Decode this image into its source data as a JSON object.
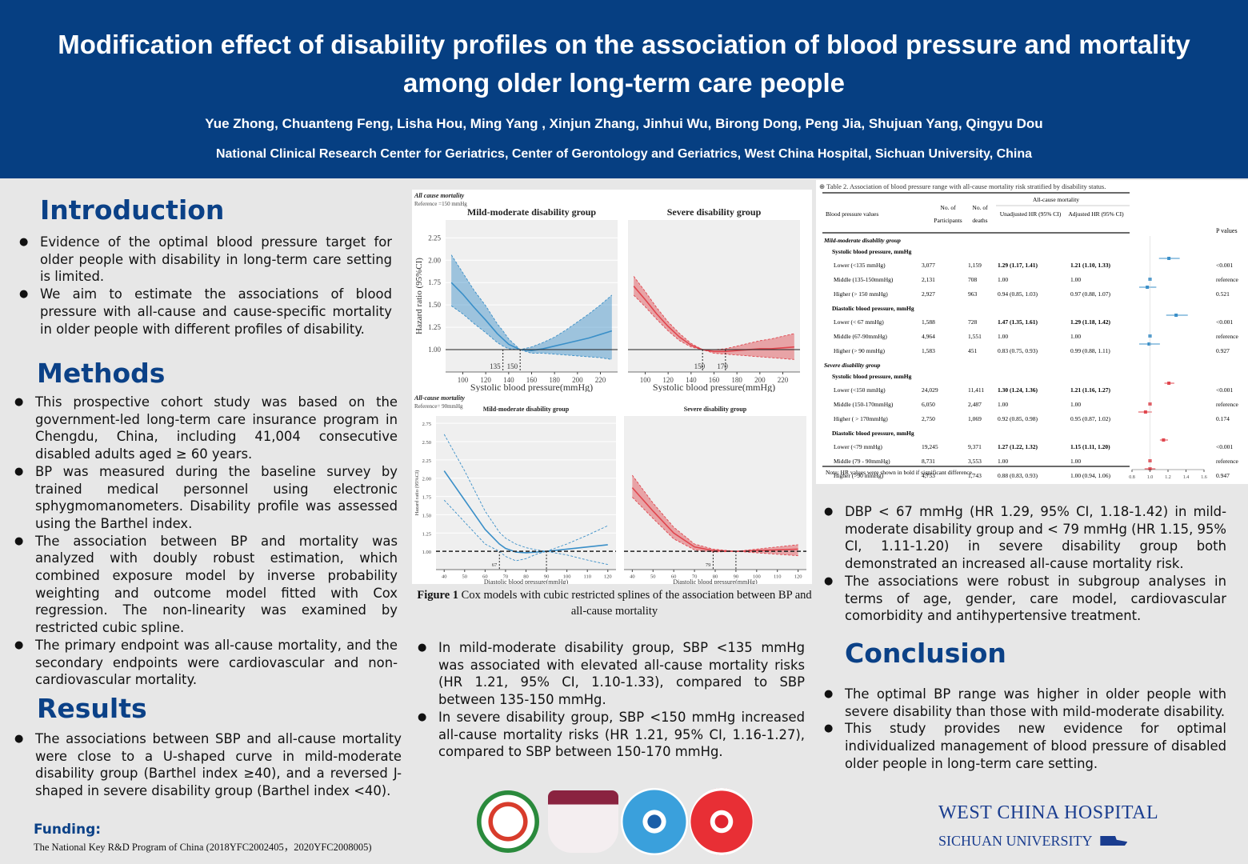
{
  "header": {
    "title": "Modification effect of disability profiles on the association of blood pressure and mortality among older long-term care people",
    "authors": "Yue Zhong, Chuanteng Feng, Lisha Hou, Ming Yang , Xinjun Zhang,  Jinhui Wu,  Birong Dong, Peng Jia, Shujuan Yang, Qingyu Dou",
    "affiliation": "National Clinical Research Center for Geriatrics, Center of Gerontology and Geriatrics, West China Hospital, Sichuan University, China"
  },
  "introduction": {
    "heading": "Introduction",
    "bullets": [
      "Evidence of the optimal blood pressure target for older people with disability in long-term care setting is limited.",
      "We aim to estimate the associations of blood pressure with all-cause and cause-specific mortality in older people with different profiles of disability."
    ]
  },
  "methods": {
    "heading": "Methods",
    "bullets": [
      "This prospective cohort study was based on the government-led long-term care insurance program in Chengdu, China, including 41,004 consecutive disabled adults aged ≥ 60 years.",
      "BP was measured during the baseline survey by trained medical personnel using electronic sphygmomanometers. Disability profile was assessed using the Barthel index.",
      "The association between BP and mortality was analyzed with doubly robust estimation, which combined exposure model by inverse probability weighting and outcome model fitted with Cox regression. The non-linearity was examined by restricted cubic spline.",
      "The primary endpoint was all-cause mortality, and the secondary endpoints were cardiovascular and non-cardiovascular mortality."
    ]
  },
  "results": {
    "heading": "Results",
    "bullets": [
      "The associations between SBP and all-cause mortality were close to a U-shaped curve in mild-moderate disability group (Barthel index ≥40), and a reversed J-shaped in severe disability group (Barthel index <40)."
    ],
    "middle_bullets": [
      "In mild-moderate disability group, SBP <135 mmHg was associated with elevated all-cause mortality risks (HR 1.21, 95% CI, 1.10-1.33), compared to SBP between 135-150 mmHg.",
      "In severe disability group, SBP <150 mmHg increased all-cause mortality risks (HR 1.21, 95% CI, 1.16-1.27), compared to SBP between 150-170 mmHg."
    ],
    "right_bullets": [
      "DBP < 67 mmHg (HR 1.29, 95% CI, 1.18-1.42) in mild-moderate disability group and < 79 mmHg (HR 1.15, 95% CI, 1.11-1.20) in severe disability group both demonstrated an increased all-cause mortality risk.",
      "The associations were robust in subgroup analyses in terms of age, gender, care model, cardiovascular comorbidity and antihypertensive treatment."
    ]
  },
  "conclusion": {
    "heading": "Conclusion",
    "bullets": [
      "The optimal BP range was higher in older people with severe disability than those with mild-moderate disability.",
      "This study provides new evidence for optimal individualized management of blood pressure of disabled older people in long-term care setting."
    ]
  },
  "funding": {
    "heading": "Funding:",
    "text": "The National Key R&D Program of China (2018YFC2002405，2020YFC2008005)"
  },
  "figure": {
    "caption_bold": "Figure 1",
    "caption_text": " Cox models with cubic restricted splines of the association between BP and all-cause mortality"
  },
  "chart_data": [
    {
      "type": "line",
      "panel_title": "All cause mortality",
      "reference_note": "Reference =150 mmHg",
      "title": "Mild-moderate disability group",
      "xlabel": "Systolic blood pressure(mmHg)",
      "ylabel": "Hazard ratio (95%CI)",
      "xticks": [
        100,
        120,
        140,
        160,
        180,
        200,
        220
      ],
      "yticks": [
        1.0,
        1.25,
        1.5,
        1.75,
        2.0,
        2.25
      ],
      "xlim": [
        85,
        235
      ],
      "ylim": [
        0.75,
        2.45
      ],
      "color": "#3a8fc8",
      "annotations": [
        "135",
        "150"
      ],
      "x": [
        90,
        100,
        110,
        120,
        130,
        135,
        140,
        150,
        160,
        170,
        180,
        190,
        200,
        210,
        220,
        230
      ],
      "hr": [
        1.75,
        1.62,
        1.47,
        1.33,
        1.18,
        1.12,
        1.06,
        1.0,
        0.99,
        1.01,
        1.04,
        1.07,
        1.1,
        1.13,
        1.17,
        1.21
      ],
      "lower": [
        1.49,
        1.4,
        1.29,
        1.19,
        1.08,
        1.04,
        1.01,
        1.0,
        0.96,
        0.96,
        0.95,
        0.94,
        0.93,
        0.92,
        0.91,
        0.89
      ],
      "upper": [
        2.06,
        1.86,
        1.66,
        1.49,
        1.29,
        1.21,
        1.12,
        1.0,
        1.03,
        1.08,
        1.14,
        1.22,
        1.31,
        1.4,
        1.5,
        1.61
      ]
    },
    {
      "type": "line",
      "title": "Severe disability group",
      "xlabel": "Systolic blood pressure(mmHg)",
      "xticks": [
        100,
        120,
        140,
        160,
        180,
        200,
        220
      ],
      "xlim": [
        85,
        235
      ],
      "ylim": [
        0.75,
        2.45
      ],
      "color": "#e0464e",
      "annotations": [
        "150",
        "170"
      ],
      "x": [
        90,
        100,
        110,
        120,
        130,
        140,
        150,
        160,
        170,
        180,
        190,
        200,
        210,
        220,
        230
      ],
      "hr": [
        1.71,
        1.56,
        1.4,
        1.26,
        1.14,
        1.05,
        1.0,
        0.98,
        0.98,
        0.99,
        1.0,
        1.01,
        1.01,
        1.02,
        1.03
      ],
      "lower": [
        1.61,
        1.48,
        1.34,
        1.21,
        1.1,
        1.03,
        1.0,
        0.96,
        0.95,
        0.94,
        0.93,
        0.92,
        0.91,
        0.9,
        0.89
      ],
      "upper": [
        1.82,
        1.65,
        1.47,
        1.31,
        1.18,
        1.07,
        1.0,
        1.0,
        1.01,
        1.04,
        1.07,
        1.1,
        1.12,
        1.15,
        1.18
      ]
    },
    {
      "type": "line",
      "panel_title": "All-cause mortality",
      "reference_note": "Reference= 90mmHg",
      "title": "Mild-moderate disability group",
      "xlabel": "Diastolic blood pressure(mmHg)",
      "ylabel": "Hazard ratio (95%CI)",
      "xticks": [
        40,
        50,
        60,
        70,
        80,
        90,
        100,
        110,
        120
      ],
      "yticks": [
        1.0,
        1.25,
        1.5,
        1.75,
        2.0,
        2.25,
        2.5,
        2.75
      ],
      "xlim": [
        36,
        124
      ],
      "ylim": [
        0.75,
        2.85
      ],
      "color": "#3a8fc8",
      "annotations": [
        "67"
      ],
      "x": [
        40,
        50,
        60,
        67,
        70,
        75,
        80,
        85,
        90,
        100,
        110,
        120
      ],
      "hr": [
        2.1,
        1.7,
        1.3,
        1.1,
        1.04,
        0.99,
        0.98,
        0.99,
        1.0,
        1.03,
        1.06,
        1.09
      ],
      "lower": [
        1.7,
        1.4,
        1.1,
        1.0,
        0.93,
        0.87,
        0.9,
        0.96,
        1.0,
        0.95,
        0.88,
        0.82
      ],
      "upper": [
        2.6,
        2.1,
        1.55,
        1.26,
        1.18,
        1.1,
        1.05,
        1.02,
        1.0,
        1.1,
        1.22,
        1.35
      ]
    },
    {
      "type": "line",
      "title": "Severe disability group",
      "xlabel": "Diastolic blood pressure(mmHg)",
      "xticks": [
        40,
        50,
        60,
        70,
        80,
        90,
        100,
        110,
        120
      ],
      "xlim": [
        36,
        124
      ],
      "ylim": [
        0.75,
        2.85
      ],
      "color": "#e0464e",
      "annotations": [
        "79"
      ],
      "x": [
        40,
        50,
        60,
        70,
        79,
        90,
        100,
        110,
        120
      ],
      "hr": [
        1.87,
        1.55,
        1.25,
        1.06,
        1.01,
        1.0,
        1.01,
        1.02,
        1.03
      ],
      "lower": [
        1.74,
        1.45,
        1.17,
        1.02,
        0.99,
        1.0,
        0.98,
        0.96,
        0.94
      ],
      "upper": [
        2.04,
        1.66,
        1.33,
        1.1,
        1.03,
        1.0,
        1.03,
        1.06,
        1.09
      ]
    }
  ],
  "table": {
    "caption": "Table 2. Association of blood pressure range with all-cause mortality risk stratified by disability status.",
    "group_header": "All-cause mortality",
    "columns": [
      "Blood pressure values",
      "No. of Participants",
      "No. of deaths",
      "Unadjusted HR (95% CI)",
      "Adjusted HR (95% CI)",
      "P values"
    ],
    "sections": [
      {
        "group": "Mild-moderate disability group",
        "subsections": [
          {
            "label": "Systolic blood pressure, mmHg",
            "rows": [
              {
                "name": "Lower (<135 mmHg)",
                "n": "3,077",
                "deaths": "1,159",
                "unadj": "1.29 (1.17, 1.41)",
                "adj": "1.21 (1.10, 1.33)",
                "p": "<0.001",
                "hr": 1.21,
                "lo": 1.1,
                "hi": 1.33
              },
              {
                "name": "Middle (135-150mmHg)",
                "n": "2,131",
                "deaths": "708",
                "unadj": "1.00",
                "adj": "1.00",
                "p": "reference",
                "hr": 1.0,
                "lo": 1.0,
                "hi": 1.0
              },
              {
                "name": "Higher (> 150 mmHg)",
                "n": "2,927",
                "deaths": "963",
                "unadj": "0.94 (0.85, 1.03)",
                "adj": "0.97 (0.88, 1.07)",
                "p": "0.521",
                "hr": 0.97,
                "lo": 0.88,
                "hi": 1.07
              }
            ]
          },
          {
            "label": "Diastolic blood pressure, mmHg",
            "rows": [
              {
                "name": "Lower (< 67 mmHg)",
                "n": "1,588",
                "deaths": "728",
                "unadj": "1.47 (1.35, 1.61)",
                "adj": "1.29 (1.18, 1.42)",
                "p": "<0.001",
                "hr": 1.29,
                "lo": 1.18,
                "hi": 1.42
              },
              {
                "name": "Middle (67-90mmHg)",
                "n": "4,964",
                "deaths": "1,551",
                "unadj": "1.00",
                "adj": "1.00",
                "p": "reference",
                "hr": 1.0,
                "lo": 1.0,
                "hi": 1.0
              },
              {
                "name": "Higher (> 90 mmHg)",
                "n": "1,583",
                "deaths": "451",
                "unadj": "0.83 (0.75, 0.93)",
                "adj": "0.99 (0.88, 1.11)",
                "p": "0.927",
                "hr": 0.99,
                "lo": 0.88,
                "hi": 1.11
              }
            ]
          }
        ]
      },
      {
        "group": "Severe disability group",
        "subsections": [
          {
            "label": "Systolic blood pressure, mmHg",
            "rows": [
              {
                "name": "Lower (<150 mmHg)",
                "n": "24,029",
                "deaths": "11,411",
                "unadj": "1.30 (1.24, 1.36)",
                "adj": "1.21 (1.16, 1.27)",
                "p": "<0.001",
                "hr": 1.21,
                "lo": 1.16,
                "hi": 1.27
              },
              {
                "name": "Middle (150-170mmHg)",
                "n": "6,050",
                "deaths": "2,487",
                "unadj": "1.00",
                "adj": "1.00",
                "p": "reference",
                "hr": 1.0,
                "lo": 1.0,
                "hi": 1.0
              },
              {
                "name": "Higher ( > 170mmHg)",
                "n": "2,750",
                "deaths": "1,069",
                "unadj": "0.92 (0.85, 0.98)",
                "adj": "0.95 (0.87, 1.02)",
                "p": "0.174",
                "hr": 0.95,
                "lo": 0.87,
                "hi": 1.02
              }
            ]
          },
          {
            "label": "Diastolic blood pressure, mmHg",
            "rows": [
              {
                "name": "Lower (<79 mmHg)",
                "n": "19,245",
                "deaths": "9,371",
                "unadj": "1.27 (1.22, 1.32)",
                "adj": "1.15 (1.11, 1.20)",
                "p": "<0.001",
                "hr": 1.15,
                "lo": 1.11,
                "hi": 1.2
              },
              {
                "name": "Middle (79 - 90mmHg)",
                "n": "8,731",
                "deaths": "3,553",
                "unadj": "1.00",
                "adj": "1.00",
                "p": "reference",
                "hr": 1.0,
                "lo": 1.0,
                "hi": 1.0
              },
              {
                "name": "Higher (>90 mmHg)",
                "n": "4,753",
                "deaths": "1,743",
                "unadj": "0.88 (0.83, 0.93)",
                "adj": "1.00 (0.94, 1.06)",
                "p": "0.947",
                "hr": 1.0,
                "lo": 0.94,
                "hi": 1.06
              }
            ]
          }
        ]
      }
    ],
    "note": "Note: HR values were shown in bold if significant difference.",
    "forest_ticks": [
      "0.8",
      "1.0",
      "1.2",
      "1.4",
      "1.6"
    ]
  },
  "logos": {
    "institution": "WEST CHINA HOSPITAL",
    "university": "SICHUAN UNIVERSITY"
  },
  "colors": {
    "header_bg": "#063f82",
    "heading": "#0b4187",
    "mild_series": "#3a8fc8",
    "severe_series": "#e0464e"
  }
}
